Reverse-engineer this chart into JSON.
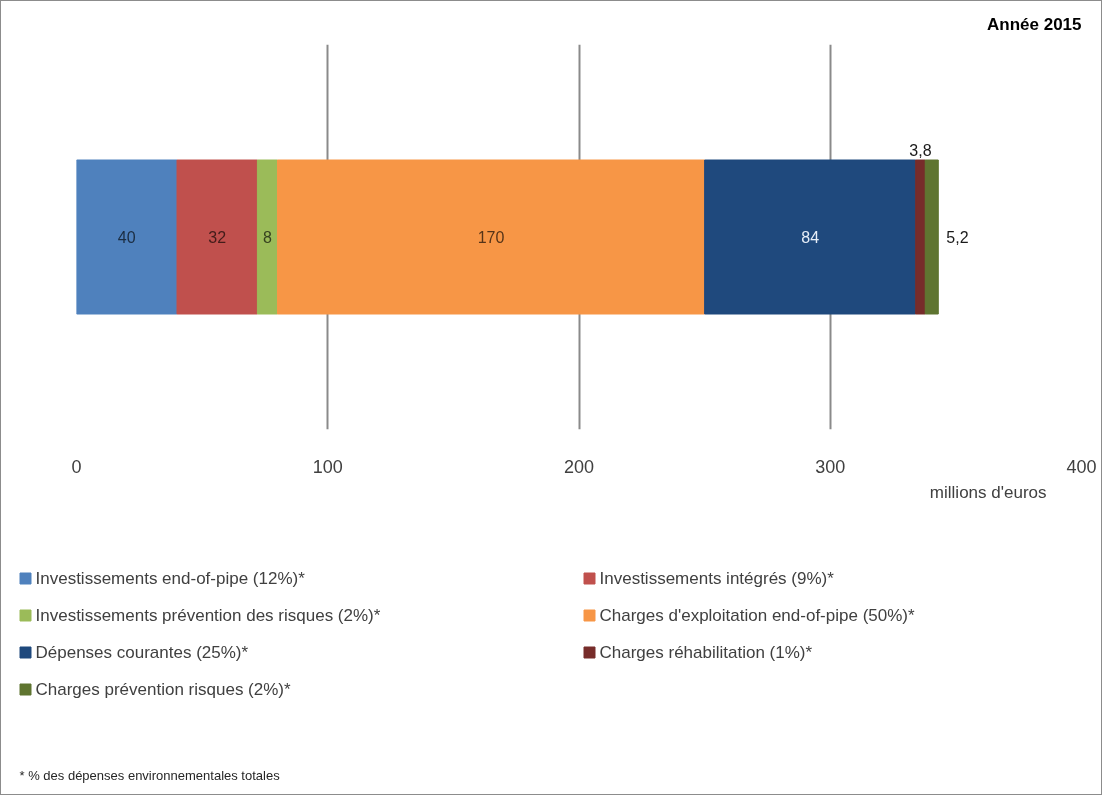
{
  "chart_data": {
    "type": "bar",
    "orientation": "horizontal",
    "stacked": true,
    "title": "Année 2015",
    "xlabel": "millions d'euros",
    "categories": [
      null
    ],
    "series": [
      {
        "name": "Investissements end-of-pipe (12%)*",
        "color": "#4f81bd",
        "values": [
          40
        ],
        "value_labels": [
          "40"
        ]
      },
      {
        "name": "Investissements intégrés (9%)*",
        "color": "#c0504d",
        "values": [
          32
        ],
        "value_labels": [
          "32"
        ]
      },
      {
        "name": "Investissements prévention des risques (2%)*",
        "color": "#9bbb59",
        "values": [
          8
        ],
        "value_labels": [
          "8"
        ]
      },
      {
        "name": "Charges d'exploitation end-of-pipe (50%)*",
        "color": "#f79646",
        "values": [
          170
        ],
        "value_labels": [
          "170"
        ]
      },
      {
        "name": "Dépenses courantes (25%)*",
        "color": "#1f497d",
        "values": [
          84
        ],
        "value_labels": [
          "84"
        ]
      },
      {
        "name": "Charges réhabilitation (1%)*",
        "color": "#772c2a",
        "values": [
          3.8
        ],
        "value_labels": [
          "3,8"
        ]
      },
      {
        "name": "Charges prévention risques (2%)*",
        "color": "#5f7530",
        "values": [
          5.2
        ],
        "value_labels": [
          "5,2"
        ]
      }
    ],
    "xlim": [
      0,
      400
    ],
    "xticks": [
      0,
      100,
      200,
      300,
      400
    ],
    "grid": "x",
    "legend": "bottom",
    "tick_labels": "x",
    "annotations": [
      "* % des dépenses environnementales totales"
    ]
  }
}
